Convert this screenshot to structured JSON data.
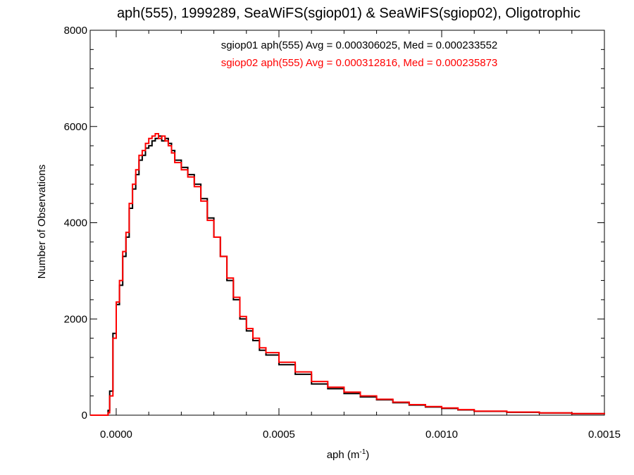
{
  "chart_data": {
    "type": "line",
    "title": "aph(555), 1999289, SeaWiFS(sgiop01) & SeaWiFS(sgiop02), Oligotrophic",
    "xlabel_main": "aph (m",
    "xlabel_sup": "-1",
    "xlabel_end": ")",
    "ylabel": "Number of Observations",
    "xlim": [
      -8e-05,
      0.0015
    ],
    "ylim": [
      0,
      8000
    ],
    "x_ticks": [
      0.0,
      0.0005,
      0.001,
      0.0015
    ],
    "x_tick_labels": [
      "0.0000",
      "0.0005",
      "0.0010",
      "0.0015"
    ],
    "y_ticks": [
      0,
      2000,
      4000,
      6000,
      8000
    ],
    "y_tick_labels": [
      "0",
      "2000",
      "4000",
      "6000",
      "8000"
    ],
    "grid": false,
    "x": [
      -8e-05,
      -4e-05,
      -2.5e-05,
      -2e-05,
      -1e-05,
      0.0,
      1e-05,
      2e-05,
      3e-05,
      4e-05,
      5e-05,
      6e-05,
      7e-05,
      8e-05,
      9e-05,
      0.0001,
      0.00011,
      0.00012,
      0.00013,
      0.00014,
      0.00015,
      0.00016,
      0.00017,
      0.00018,
      0.0002,
      0.00022,
      0.00024,
      0.00026,
      0.00028,
      0.0003,
      0.00032,
      0.00034,
      0.00036,
      0.00038,
      0.0004,
      0.00042,
      0.00044,
      0.00046,
      0.0005,
      0.00055,
      0.0006,
      0.00065,
      0.0007,
      0.00075,
      0.0008,
      0.00085,
      0.0009,
      0.00095,
      0.001,
      0.00105,
      0.0011,
      0.0012,
      0.0013,
      0.0014,
      0.0015
    ],
    "series": [
      {
        "name": "sgiop01",
        "color": "#000000",
        "values": [
          0,
          0,
          100,
          500,
          1700,
          2300,
          2700,
          3300,
          3700,
          4300,
          4700,
          5000,
          5300,
          5400,
          5550,
          5600,
          5700,
          5750,
          5800,
          5700,
          5750,
          5650,
          5500,
          5300,
          5150,
          5000,
          4800,
          4500,
          4100,
          3700,
          3300,
          2800,
          2400,
          2000,
          1750,
          1550,
          1350,
          1250,
          1050,
          850,
          650,
          550,
          450,
          380,
          320,
          260,
          210,
          170,
          140,
          110,
          80,
          60,
          45,
          30,
          20
        ]
      },
      {
        "name": "sgiop02",
        "color": "#ff0000",
        "values": [
          0,
          0,
          50,
          400,
          1600,
          2350,
          2800,
          3400,
          3800,
          4400,
          4800,
          5100,
          5400,
          5500,
          5650,
          5750,
          5800,
          5850,
          5750,
          5800,
          5700,
          5600,
          5450,
          5250,
          5100,
          4950,
          4750,
          4450,
          4050,
          3700,
          3300,
          2850,
          2450,
          2050,
          1800,
          1600,
          1400,
          1300,
          1100,
          900,
          700,
          580,
          480,
          400,
          330,
          270,
          220,
          180,
          150,
          115,
          85,
          65,
          48,
          32,
          22
        ]
      }
    ],
    "annotations": [
      {
        "text": "sgiop01 aph(555) Avg = 0.000306025, Med = 0.000233552",
        "color": "#000000"
      },
      {
        "text": "sgiop02 aph(555) Avg = 0.000312816, Med = 0.000235873",
        "color": "#ff0000"
      }
    ]
  }
}
